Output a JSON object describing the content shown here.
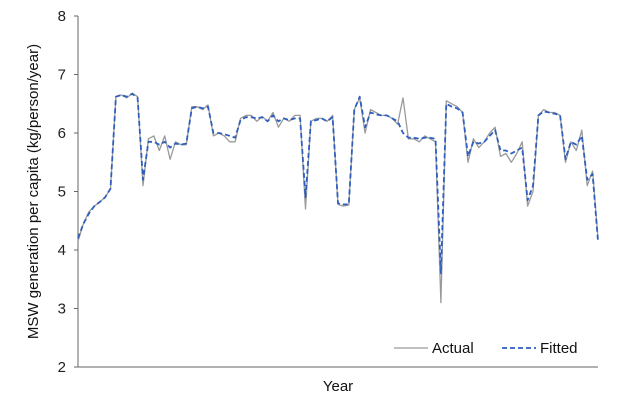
{
  "chart_data": {
    "type": "line",
    "title": "",
    "xlabel": "Year",
    "ylabel": "MSW generation per capita (kg/person/year)",
    "ylim": [
      2,
      8
    ],
    "yticks": [
      2,
      3,
      4,
      5,
      6,
      7,
      8
    ],
    "xticks": [],
    "grid": false,
    "legend_position": "bottom-right",
    "series": [
      {
        "name": "Actual",
        "color": "#9a9a9a",
        "style": "solid",
        "values": [
          4.15,
          4.45,
          4.65,
          4.75,
          4.82,
          4.9,
          5.05,
          6.62,
          6.65,
          6.6,
          6.68,
          6.62,
          5.1,
          5.9,
          5.95,
          5.7,
          5.95,
          5.55,
          5.85,
          5.8,
          5.8,
          6.45,
          6.45,
          6.4,
          6.48,
          5.95,
          6.0,
          5.95,
          5.85,
          5.85,
          6.25,
          6.3,
          6.3,
          6.2,
          6.28,
          6.2,
          6.35,
          6.1,
          6.25,
          6.2,
          6.3,
          6.3,
          4.7,
          6.2,
          6.25,
          6.25,
          6.2,
          6.3,
          4.78,
          4.75,
          4.77,
          6.4,
          6.6,
          6.0,
          6.4,
          6.35,
          6.3,
          6.3,
          6.25,
          6.15,
          6.6,
          5.9,
          5.9,
          5.85,
          5.95,
          5.9,
          5.85,
          3.1,
          6.55,
          6.5,
          6.45,
          6.35,
          5.5,
          5.9,
          5.75,
          5.85,
          6.0,
          6.1,
          5.6,
          5.65,
          5.5,
          5.65,
          5.85,
          4.75,
          5.0,
          6.3,
          6.4,
          6.35,
          6.35,
          6.3,
          5.5,
          5.85,
          5.7,
          6.05,
          5.1,
          5.35,
          4.2
        ],
        "_comment_removed": ""
      },
      {
        "name": "Fitted",
        "color": "#2e5fbf",
        "style": "dashed",
        "values": [
          4.2,
          4.45,
          4.62,
          4.75,
          4.82,
          4.9,
          5.05,
          6.62,
          6.65,
          6.62,
          6.67,
          6.6,
          5.2,
          5.85,
          5.85,
          5.8,
          5.85,
          5.75,
          5.82,
          5.8,
          5.82,
          6.42,
          6.45,
          6.42,
          6.45,
          6.0,
          6.0,
          5.98,
          5.95,
          5.92,
          6.22,
          6.27,
          6.27,
          6.25,
          6.27,
          6.2,
          6.3,
          6.2,
          6.25,
          6.22,
          6.25,
          6.25,
          4.9,
          6.2,
          6.22,
          6.25,
          6.2,
          6.27,
          4.8,
          4.78,
          4.78,
          6.4,
          6.62,
          6.1,
          6.35,
          6.32,
          6.3,
          6.3,
          6.25,
          6.2,
          6.0,
          5.92,
          5.92,
          5.9,
          5.92,
          5.92,
          5.9,
          3.6,
          6.5,
          6.45,
          6.42,
          6.35,
          5.6,
          5.85,
          5.82,
          5.85,
          5.95,
          6.05,
          5.7,
          5.7,
          5.65,
          5.7,
          5.75,
          4.85,
          5.1,
          6.3,
          6.37,
          6.35,
          6.33,
          6.3,
          5.55,
          5.85,
          5.8,
          5.95,
          5.2,
          5.3,
          4.15
        ]
      }
    ]
  }
}
